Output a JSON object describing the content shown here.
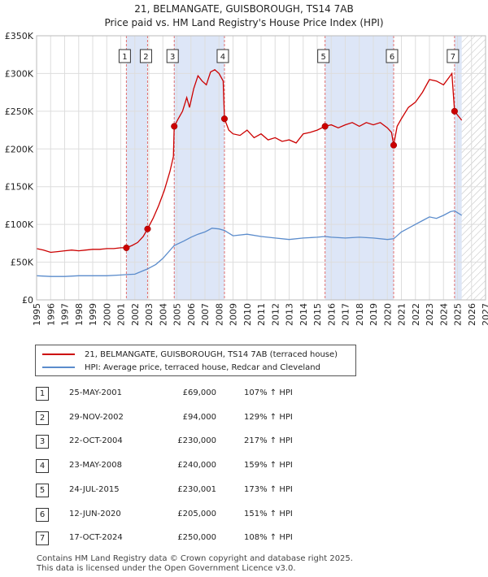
{
  "title_line1": "21, BELMANGATE, GUISBOROUGH, TS14 7AB",
  "title_line2": "Price paid vs. HM Land Registry's House Price Index (HPI)",
  "colors": {
    "price": "#cc0000",
    "hpi": "#5b8ccc",
    "shade": "#dde6f7",
    "grid": "#dddddd",
    "vline": "#e07070"
  },
  "legend": {
    "price_label": "21, BELMANGATE, GUISBOROUGH, TS14 7AB (terraced house)",
    "hpi_label": "HPI: Average price, terraced house, Redcar and Cleveland"
  },
  "transactions": [
    {
      "num": "1",
      "date": "25-MAY-2001",
      "price": "£69,000",
      "pct": "107% ↑ HPI"
    },
    {
      "num": "2",
      "date": "29-NOV-2002",
      "price": "£94,000",
      "pct": "129% ↑ HPI"
    },
    {
      "num": "3",
      "date": "22-OCT-2004",
      "price": "£230,000",
      "pct": "217% ↑ HPI"
    },
    {
      "num": "4",
      "date": "23-MAY-2008",
      "price": "£240,000",
      "pct": "159% ↑ HPI"
    },
    {
      "num": "5",
      "date": "24-JUL-2015",
      "price": "£230,001",
      "pct": "173% ↑ HPI"
    },
    {
      "num": "6",
      "date": "12-JUN-2020",
      "price": "£205,000",
      "pct": "151% ↑ HPI"
    },
    {
      "num": "7",
      "date": "17-OCT-2024",
      "price": "£250,000",
      "pct": "108% ↑ HPI"
    }
  ],
  "footer_line1": "Contains HM Land Registry data © Crown copyright and database right 2025.",
  "footer_line2": "This data is licensed under the Open Government Licence v3.0.",
  "chart_data": {
    "type": "line",
    "title": "21, BELMANGATE, GUISBOROUGH, TS14 7AB — Price paid vs. HM Land Registry's House Price Index (HPI)",
    "xlabel": "",
    "ylabel": "",
    "xlim": [
      1995,
      2027
    ],
    "ylim": [
      0,
      350000
    ],
    "x_ticks": [
      1995,
      1996,
      1997,
      1998,
      1999,
      2000,
      2001,
      2002,
      2003,
      2004,
      2005,
      2006,
      2007,
      2008,
      2009,
      2010,
      2011,
      2012,
      2013,
      2014,
      2015,
      2016,
      2017,
      2018,
      2019,
      2020,
      2021,
      2022,
      2023,
      2024,
      2025,
      2026,
      2027
    ],
    "y_ticks": [
      {
        "value": 0,
        "label": "£0"
      },
      {
        "value": 50000,
        "label": "£50K"
      },
      {
        "value": 100000,
        "label": "£100K"
      },
      {
        "value": 150000,
        "label": "£150K"
      },
      {
        "value": 200000,
        "label": "£200K"
      },
      {
        "value": 250000,
        "label": "£250K"
      },
      {
        "value": 300000,
        "label": "£300K"
      },
      {
        "value": 350000,
        "label": "£350K"
      }
    ],
    "shaded_ranges": [
      [
        2001.4,
        2002.91
      ],
      [
        2004.81,
        2008.39
      ],
      [
        2015.56,
        2020.45
      ],
      [
        2024.79,
        2025.3
      ]
    ],
    "hatched_future_from": 2025.3,
    "sale_markers": [
      {
        "label": "1",
        "x": 2001.4,
        "y": 69000
      },
      {
        "label": "2",
        "x": 2002.91,
        "y": 94000
      },
      {
        "label": "3",
        "x": 2004.81,
        "y": 230000
      },
      {
        "label": "4",
        "x": 2008.39,
        "y": 240000
      },
      {
        "label": "5",
        "x": 2015.56,
        "y": 230001
      },
      {
        "label": "6",
        "x": 2020.45,
        "y": 205000
      },
      {
        "label": "7",
        "x": 2024.79,
        "y": 250000
      }
    ],
    "series": [
      {
        "name": "21, BELMANGATE, GUISBOROUGH, TS14 7AB (terraced house)",
        "color": "#cc0000",
        "points": [
          [
            1995,
            68000
          ],
          [
            1995.5,
            66000
          ],
          [
            1996,
            63000
          ],
          [
            1996.5,
            64000
          ],
          [
            1997,
            65000
          ],
          [
            1997.5,
            66000
          ],
          [
            1998,
            65000
          ],
          [
            1998.5,
            66000
          ],
          [
            1999,
            67000
          ],
          [
            1999.5,
            67000
          ],
          [
            2000,
            68000
          ],
          [
            2000.5,
            68000
          ],
          [
            2001,
            69000
          ],
          [
            2001.4,
            69000
          ],
          [
            2001.8,
            72000
          ],
          [
            2002.2,
            76000
          ],
          [
            2002.6,
            84000
          ],
          [
            2002.91,
            94000
          ],
          [
            2003.3,
            108000
          ],
          [
            2003.7,
            125000
          ],
          [
            2004.1,
            145000
          ],
          [
            2004.5,
            170000
          ],
          [
            2004.75,
            190000
          ],
          [
            2004.81,
            230000
          ],
          [
            2005.1,
            240000
          ],
          [
            2005.4,
            250000
          ],
          [
            2005.7,
            268000
          ],
          [
            2005.9,
            255000
          ],
          [
            2006.2,
            280000
          ],
          [
            2006.5,
            297000
          ],
          [
            2006.8,
            290000
          ],
          [
            2007.1,
            285000
          ],
          [
            2007.4,
            302000
          ],
          [
            2007.7,
            305000
          ],
          [
            2008.0,
            300000
          ],
          [
            2008.3,
            290000
          ],
          [
            2008.39,
            240000
          ],
          [
            2008.7,
            225000
          ],
          [
            2009.0,
            220000
          ],
          [
            2009.5,
            218000
          ],
          [
            2010,
            225000
          ],
          [
            2010.5,
            215000
          ],
          [
            2011,
            220000
          ],
          [
            2011.5,
            212000
          ],
          [
            2012,
            215000
          ],
          [
            2012.5,
            210000
          ],
          [
            2013,
            212000
          ],
          [
            2013.5,
            208000
          ],
          [
            2014,
            220000
          ],
          [
            2014.5,
            222000
          ],
          [
            2015,
            225000
          ],
          [
            2015.56,
            230001
          ],
          [
            2016,
            232000
          ],
          [
            2016.5,
            228000
          ],
          [
            2017,
            232000
          ],
          [
            2017.5,
            235000
          ],
          [
            2018,
            230000
          ],
          [
            2018.5,
            235000
          ],
          [
            2019,
            232000
          ],
          [
            2019.5,
            235000
          ],
          [
            2020,
            228000
          ],
          [
            2020.3,
            222000
          ],
          [
            2020.45,
            205000
          ],
          [
            2020.7,
            230000
          ],
          [
            2021,
            240000
          ],
          [
            2021.5,
            255000
          ],
          [
            2022,
            262000
          ],
          [
            2022.5,
            275000
          ],
          [
            2023,
            292000
          ],
          [
            2023.5,
            290000
          ],
          [
            2024,
            285000
          ],
          [
            2024.4,
            295000
          ],
          [
            2024.6,
            300000
          ],
          [
            2024.79,
            250000
          ],
          [
            2025.0,
            245000
          ],
          [
            2025.3,
            238000
          ]
        ]
      },
      {
        "name": "HPI: Average price, terraced house, Redcar and Cleveland",
        "color": "#5b8ccc",
        "points": [
          [
            1995,
            32000
          ],
          [
            1996,
            31000
          ],
          [
            1997,
            31000
          ],
          [
            1998,
            32000
          ],
          [
            1999,
            32000
          ],
          [
            2000,
            32000
          ],
          [
            2001,
            33000
          ],
          [
            2001.4,
            33500
          ],
          [
            2002,
            34000
          ],
          [
            2002.91,
            41000
          ],
          [
            2003.5,
            47000
          ],
          [
            2004,
            55000
          ],
          [
            2004.81,
            72000
          ],
          [
            2005.5,
            78000
          ],
          [
            2006,
            83000
          ],
          [
            2006.5,
            87000
          ],
          [
            2007,
            90000
          ],
          [
            2007.5,
            95000
          ],
          [
            2008,
            94000
          ],
          [
            2008.39,
            92000
          ],
          [
            2009,
            85000
          ],
          [
            2010,
            87000
          ],
          [
            2011,
            84000
          ],
          [
            2012,
            82000
          ],
          [
            2013,
            80000
          ],
          [
            2014,
            82000
          ],
          [
            2015,
            83000
          ],
          [
            2015.56,
            84000
          ],
          [
            2016,
            83000
          ],
          [
            2017,
            82000
          ],
          [
            2018,
            83000
          ],
          [
            2019,
            82000
          ],
          [
            2020,
            80000
          ],
          [
            2020.45,
            81000
          ],
          [
            2021,
            90000
          ],
          [
            2022,
            100000
          ],
          [
            2022.5,
            105000
          ],
          [
            2023,
            110000
          ],
          [
            2023.5,
            108000
          ],
          [
            2024,
            112000
          ],
          [
            2024.5,
            117000
          ],
          [
            2024.79,
            118000
          ],
          [
            2025.3,
            112000
          ]
        ]
      }
    ]
  }
}
